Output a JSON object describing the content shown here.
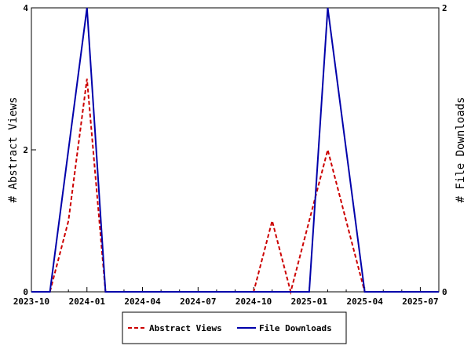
{
  "chart_data": {
    "type": "line",
    "x": [
      "2023-10",
      "2023-11",
      "2023-12",
      "2024-01",
      "2024-02",
      "2024-03",
      "2024-04",
      "2024-05",
      "2024-06",
      "2024-07",
      "2024-08",
      "2024-09",
      "2024-10",
      "2024-11",
      "2024-12",
      "2025-01",
      "2025-02",
      "2025-03",
      "2025-04",
      "2025-05",
      "2025-06",
      "2025-07",
      "2025-08"
    ],
    "x_ticks": [
      "2023-10",
      "2024-01",
      "2024-04",
      "2024-07",
      "2024-10",
      "2025-01",
      "2025-04",
      "2025-07"
    ],
    "series": [
      {
        "name": "Abstract Views",
        "axis": "left",
        "color": "#cc0000",
        "dash": "dashed",
        "values": [
          0,
          0,
          1,
          3,
          0,
          0,
          0,
          0,
          0,
          0,
          0,
          0,
          0,
          1,
          0,
          1,
          2,
          1,
          0,
          0,
          0,
          0,
          0
        ]
      },
      {
        "name": "File Downloads",
        "axis": "right",
        "color": "#0000aa",
        "dash": "solid",
        "values": [
          0,
          0,
          1,
          2,
          0,
          0,
          0,
          0,
          0,
          0,
          0,
          0,
          0,
          0,
          0,
          0,
          2,
          1,
          0,
          0,
          0,
          0,
          0
        ]
      }
    ],
    "y_left": {
      "label": "# Abstract Views",
      "ticks": [
        "0",
        "2",
        "4"
      ],
      "range": [
        0,
        4
      ]
    },
    "y_right": {
      "label": "# File Downloads",
      "ticks": [
        "0",
        "2"
      ],
      "range": [
        0,
        2
      ]
    },
    "legend_position": "bottom",
    "grid": false
  }
}
